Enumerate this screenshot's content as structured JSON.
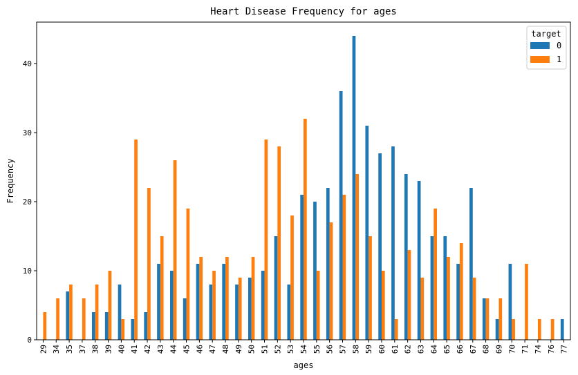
{
  "chart_data": {
    "type": "bar",
    "title": "Heart Disease Frequency for ages",
    "xlabel": "ages",
    "ylabel": "Frequency",
    "ylim": [
      0,
      46
    ],
    "yticks": [
      0,
      10,
      20,
      30,
      40
    ],
    "grid": false,
    "legend": {
      "title": "target",
      "placement": "top-right"
    },
    "categories": [
      "29",
      "34",
      "35",
      "37",
      "38",
      "39",
      "40",
      "41",
      "42",
      "43",
      "44",
      "45",
      "46",
      "47",
      "48",
      "49",
      "50",
      "51",
      "52",
      "53",
      "54",
      "55",
      "56",
      "57",
      "58",
      "59",
      "60",
      "61",
      "62",
      "63",
      "64",
      "65",
      "66",
      "67",
      "68",
      "69",
      "70",
      "71",
      "74",
      "76",
      "77"
    ],
    "series": [
      {
        "name": "0",
        "color": "#1f77b4",
        "values": [
          0,
          0,
          7,
          0,
          4,
          4,
          8,
          3,
          4,
          11,
          10,
          6,
          11,
          8,
          11,
          8,
          9,
          10,
          15,
          8,
          21,
          20,
          22,
          36,
          44,
          31,
          27,
          28,
          24,
          23,
          15,
          15,
          11,
          22,
          6,
          3,
          11,
          0,
          0,
          0,
          3
        ]
      },
      {
        "name": "1",
        "color": "#ff7f0e",
        "values": [
          4,
          6,
          8,
          6,
          8,
          10,
          3,
          29,
          22,
          15,
          26,
          19,
          12,
          10,
          12,
          9,
          12,
          29,
          28,
          18,
          32,
          10,
          17,
          21,
          24,
          15,
          10,
          3,
          13,
          9,
          19,
          12,
          14,
          9,
          6,
          6,
          3,
          11,
          3,
          3,
          0
        ]
      }
    ]
  }
}
